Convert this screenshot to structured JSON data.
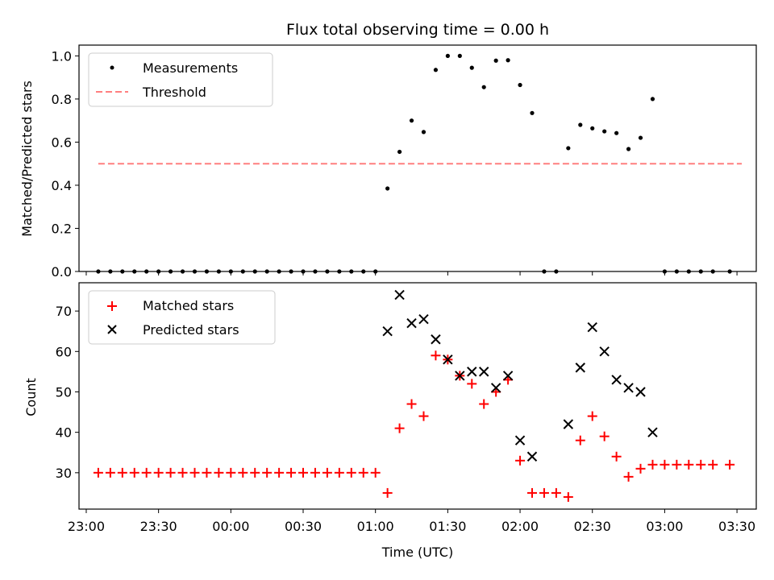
{
  "chart_data": [
    {
      "type": "scatter",
      "title": "Flux total observing time = 0.00 h",
      "xlabel": "",
      "ylabel": "Matched/Predicted stars",
      "xlim": [
        "22:57",
        "03:38"
      ],
      "ylim": [
        0,
        1.05
      ],
      "yticks": [
        "0.0",
        "0.2",
        "0.4",
        "0.6",
        "0.8",
        "1.0"
      ],
      "grid": false,
      "legend_placement": "upper-left",
      "series": [
        {
          "name": "Measurements",
          "marker": "dot",
          "color": "#000000",
          "points": [
            [
              "23:05",
              0
            ],
            [
              "23:10",
              0
            ],
            [
              "23:15",
              0
            ],
            [
              "23:20",
              0
            ],
            [
              "23:25",
              0
            ],
            [
              "23:30",
              0
            ],
            [
              "23:35",
              0
            ],
            [
              "23:40",
              0
            ],
            [
              "23:45",
              0
            ],
            [
              "23:50",
              0
            ],
            [
              "23:55",
              0
            ],
            [
              "00:00",
              0
            ],
            [
              "00:05",
              0
            ],
            [
              "00:10",
              0
            ],
            [
              "00:15",
              0
            ],
            [
              "00:20",
              0
            ],
            [
              "00:25",
              0
            ],
            [
              "00:30",
              0
            ],
            [
              "00:35",
              0
            ],
            [
              "00:40",
              0
            ],
            [
              "00:45",
              0
            ],
            [
              "00:50",
              0
            ],
            [
              "00:55",
              0
            ],
            [
              "01:00",
              0
            ],
            [
              "01:05",
              0.385
            ],
            [
              "01:10",
              0.555
            ],
            [
              "01:15",
              0.7
            ],
            [
              "01:20",
              0.647
            ],
            [
              "01:25",
              0.935
            ],
            [
              "01:30",
              1.0
            ],
            [
              "01:35",
              1.0
            ],
            [
              "01:40",
              0.945
            ],
            [
              "01:45",
              0.855
            ],
            [
              "01:50",
              0.978
            ],
            [
              "01:55",
              0.98
            ],
            [
              "02:00",
              0.865
            ],
            [
              "02:05",
              0.735
            ],
            [
              "02:10",
              0
            ],
            [
              "02:15",
              0
            ],
            [
              "02:20",
              0.572
            ],
            [
              "02:25",
              0.68
            ],
            [
              "02:30",
              0.664
            ],
            [
              "02:35",
              0.65
            ],
            [
              "02:40",
              0.642
            ],
            [
              "02:45",
              0.568
            ],
            [
              "02:50",
              0.62
            ],
            [
              "02:55",
              0.8
            ],
            [
              "03:00",
              0
            ],
            [
              "03:05",
              0
            ],
            [
              "03:10",
              0
            ],
            [
              "03:15",
              0
            ],
            [
              "03:20",
              0
            ],
            [
              "03:27",
              0
            ]
          ]
        },
        {
          "name": "Threshold",
          "marker": "dashed-line",
          "color": "#ff7f7f",
          "points": [
            [
              "23:05",
              0.5
            ],
            [
              "03:32",
              0.5
            ]
          ]
        }
      ]
    },
    {
      "type": "scatter",
      "title": "",
      "xlabel": "Time (UTC)",
      "ylabel": "Count",
      "xlim": [
        "22:57",
        "03:38"
      ],
      "ylim": [
        21,
        77
      ],
      "yticks": [
        "30",
        "40",
        "50",
        "60",
        "70"
      ],
      "xticks": [
        "23:00",
        "23:30",
        "00:00",
        "00:30",
        "01:00",
        "01:30",
        "02:00",
        "02:30",
        "03:00",
        "03:30"
      ],
      "grid": false,
      "legend_placement": "upper-left",
      "series": [
        {
          "name": "Matched stars",
          "marker": "plus",
          "color": "#ff0000",
          "points": [
            [
              "23:05",
              30
            ],
            [
              "23:10",
              30
            ],
            [
              "23:15",
              30
            ],
            [
              "23:20",
              30
            ],
            [
              "23:25",
              30
            ],
            [
              "23:30",
              30
            ],
            [
              "23:35",
              30
            ],
            [
              "23:40",
              30
            ],
            [
              "23:45",
              30
            ],
            [
              "23:50",
              30
            ],
            [
              "23:55",
              30
            ],
            [
              "00:00",
              30
            ],
            [
              "00:05",
              30
            ],
            [
              "00:10",
              30
            ],
            [
              "00:15",
              30
            ],
            [
              "00:20",
              30
            ],
            [
              "00:25",
              30
            ],
            [
              "00:30",
              30
            ],
            [
              "00:35",
              30
            ],
            [
              "00:40",
              30
            ],
            [
              "00:45",
              30
            ],
            [
              "00:50",
              30
            ],
            [
              "00:55",
              30
            ],
            [
              "01:00",
              30
            ],
            [
              "01:05",
              25
            ],
            [
              "01:10",
              41
            ],
            [
              "01:15",
              47
            ],
            [
              "01:20",
              44
            ],
            [
              "01:25",
              59
            ],
            [
              "01:30",
              58
            ],
            [
              "01:35",
              54
            ],
            [
              "01:40",
              52
            ],
            [
              "01:45",
              47
            ],
            [
              "01:50",
              50
            ],
            [
              "01:55",
              53
            ],
            [
              "02:00",
              33
            ],
            [
              "02:05",
              25
            ],
            [
              "02:10",
              25
            ],
            [
              "02:15",
              25
            ],
            [
              "02:20",
              24
            ],
            [
              "02:25",
              38
            ],
            [
              "02:30",
              44
            ],
            [
              "02:35",
              39
            ],
            [
              "02:40",
              34
            ],
            [
              "02:45",
              29
            ],
            [
              "02:50",
              31
            ],
            [
              "02:55",
              32
            ],
            [
              "03:00",
              32
            ],
            [
              "03:05",
              32
            ],
            [
              "03:10",
              32
            ],
            [
              "03:15",
              32
            ],
            [
              "03:20",
              32
            ],
            [
              "03:27",
              32
            ]
          ]
        },
        {
          "name": "Predicted stars",
          "marker": "x",
          "color": "#000000",
          "points": [
            [
              "01:05",
              65
            ],
            [
              "01:10",
              74
            ],
            [
              "01:15",
              67
            ],
            [
              "01:20",
              68
            ],
            [
              "01:25",
              63
            ],
            [
              "01:30",
              58
            ],
            [
              "01:35",
              54
            ],
            [
              "01:40",
              55
            ],
            [
              "01:45",
              55
            ],
            [
              "01:50",
              51
            ],
            [
              "01:55",
              54
            ],
            [
              "02:00",
              38
            ],
            [
              "02:05",
              34
            ],
            [
              "02:20",
              42
            ],
            [
              "02:25",
              56
            ],
            [
              "02:30",
              66
            ],
            [
              "02:35",
              60
            ],
            [
              "02:40",
              53
            ],
            [
              "02:45",
              51
            ],
            [
              "02:50",
              50
            ],
            [
              "02:55",
              40
            ]
          ]
        }
      ]
    }
  ]
}
